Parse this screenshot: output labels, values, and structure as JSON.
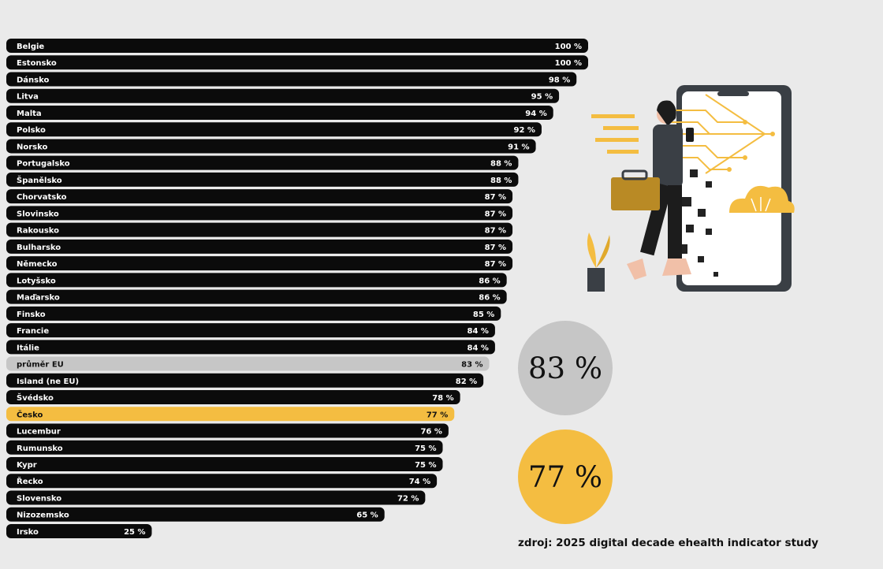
{
  "chart_data": {
    "type": "bar",
    "orientation": "horizontal",
    "categories": [
      "Belgie",
      "Estonsko",
      "Dánsko",
      "Litva",
      "Malta",
      "Polsko",
      "Norsko",
      "Portugalsko",
      "Španělsko",
      "Chorvatsko",
      "Slovinsko",
      "Rakousko",
      "Bulharsko",
      "Německo",
      "Lotyšsko",
      "Maďarsko",
      "Finsko",
      "Francie",
      "Itálie",
      "průměr EU",
      "Island (ne EU)",
      "Švédsko",
      "Česko",
      "Lucembur",
      "Rumunsko",
      "Kypr",
      "Řecko",
      "Slovensko",
      "Nizozemsko",
      "Irsko"
    ],
    "values": [
      100,
      100,
      98,
      95,
      94,
      92,
      91,
      88,
      88,
      87,
      87,
      87,
      87,
      87,
      86,
      86,
      85,
      84,
      84,
      83,
      82,
      78,
      77,
      76,
      75,
      75,
      74,
      72,
      65,
      25
    ],
    "value_labels": [
      "100 %",
      "100 %",
      "98 %",
      "95 %",
      "94 %",
      "92 %",
      "91 %",
      "88 %",
      "88 %",
      "87 %",
      "87 %",
      "87 %",
      "87 %",
      "87 %",
      "86 %",
      "86 %",
      "85 %",
      "84 %",
      "84 %",
      "83 %",
      "82 %",
      "78 %",
      "77 %",
      "76 %",
      "75 %",
      "75 %",
      "74 %",
      "72 %",
      "65 %",
      "25 %"
    ],
    "highlight": {
      "průměr EU": "#c6c6c6",
      "Česko": "#f4bd41"
    },
    "bar_color": "#0b0b0b",
    "xlim": [
      0,
      100
    ],
    "grid": false,
    "title": "",
    "xlabel": "",
    "ylabel": ""
  },
  "callouts": {
    "eu_average": {
      "text": "83 %",
      "color": "#c6c6c6"
    },
    "czechia": {
      "text": "77 %",
      "color": "#f4bd41"
    }
  },
  "source": "zdroj: 2025 digital decade ehealth indicator study",
  "illustration": {
    "icon": "woman-with-briefcase-phone-cloud-illustration",
    "accent": "#f4bd41"
  }
}
